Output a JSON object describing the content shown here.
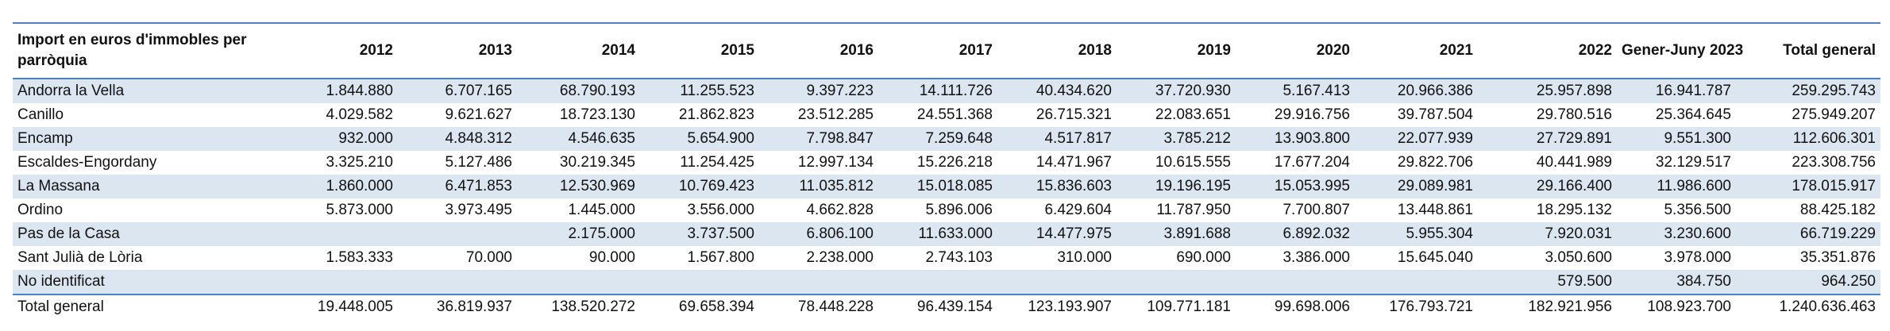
{
  "table": {
    "columns": [
      "Import en euros d'immobles per parròquia",
      "2012",
      "2013",
      "2014",
      "2015",
      "2016",
      "2017",
      "2018",
      "2019",
      "2020",
      "2021",
      "2022",
      "Gener-Juny 2023",
      "Total general"
    ],
    "rows": [
      {
        "label": "Andorra la Vella",
        "values": [
          "1.844.880",
          "6.707.165",
          "68.790.193",
          "11.255.523",
          "9.397.223",
          "14.111.726",
          "40.434.620",
          "37.720.930",
          "5.167.413",
          "20.966.386",
          "25.957.898",
          "16.941.787",
          "259.295.743"
        ]
      },
      {
        "label": "Canillo",
        "values": [
          "4.029.582",
          "9.621.627",
          "18.723.130",
          "21.862.823",
          "23.512.285",
          "24.551.368",
          "26.715.321",
          "22.083.651",
          "29.916.756",
          "39.787.504",
          "29.780.516",
          "25.364.645",
          "275.949.207"
        ]
      },
      {
        "label": "Encamp",
        "values": [
          "932.000",
          "4.848.312",
          "4.546.635",
          "5.654.900",
          "7.798.847",
          "7.259.648",
          "4.517.817",
          "3.785.212",
          "13.903.800",
          "22.077.939",
          "27.729.891",
          "9.551.300",
          "112.606.301"
        ]
      },
      {
        "label": "Escaldes-Engordany",
        "values": [
          "3.325.210",
          "5.127.486",
          "30.219.345",
          "11.254.425",
          "12.997.134",
          "15.226.218",
          "14.471.967",
          "10.615.555",
          "17.677.204",
          "29.822.706",
          "40.441.989",
          "32.129.517",
          "223.308.756"
        ]
      },
      {
        "label": "La Massana",
        "values": [
          "1.860.000",
          "6.471.853",
          "12.530.969",
          "10.769.423",
          "11.035.812",
          "15.018.085",
          "15.836.603",
          "19.196.195",
          "15.053.995",
          "29.089.981",
          "29.166.400",
          "11.986.600",
          "178.015.917"
        ]
      },
      {
        "label": "Ordino",
        "values": [
          "5.873.000",
          "3.973.495",
          "1.445.000",
          "3.556.000",
          "4.662.828",
          "5.896.006",
          "6.429.604",
          "11.787.950",
          "7.700.807",
          "13.448.861",
          "18.295.132",
          "5.356.500",
          "88.425.182"
        ]
      },
      {
        "label": "Pas de la Casa",
        "values": [
          null,
          null,
          "2.175.000",
          "3.737.500",
          "6.806.100",
          "11.633.000",
          "14.477.975",
          "3.891.688",
          "6.892.032",
          "5.955.304",
          "7.920.031",
          "3.230.600",
          "66.719.229"
        ]
      },
      {
        "label": "Sant Julià de Lòria",
        "values": [
          "1.583.333",
          "70.000",
          "90.000",
          "1.567.800",
          "2.238.000",
          "2.743.103",
          "310.000",
          "690.000",
          "3.386.000",
          "15.645.040",
          "3.050.600",
          "3.978.000",
          "35.351.876"
        ]
      },
      {
        "label": "No identificat",
        "values": [
          null,
          null,
          null,
          null,
          null,
          null,
          null,
          null,
          null,
          null,
          "579.500",
          "384.750",
          "964.250"
        ]
      },
      {
        "label": "Total general",
        "values": [
          "19.448.005",
          "36.819.937",
          "138.520.272",
          "69.658.394",
          "78.448.228",
          "96.439.154",
          "123.193.907",
          "109.771.181",
          "99.698.006",
          "176.793.721",
          "182.921.956",
          "108.923.700",
          "1.240.636.463"
        ]
      }
    ]
  }
}
